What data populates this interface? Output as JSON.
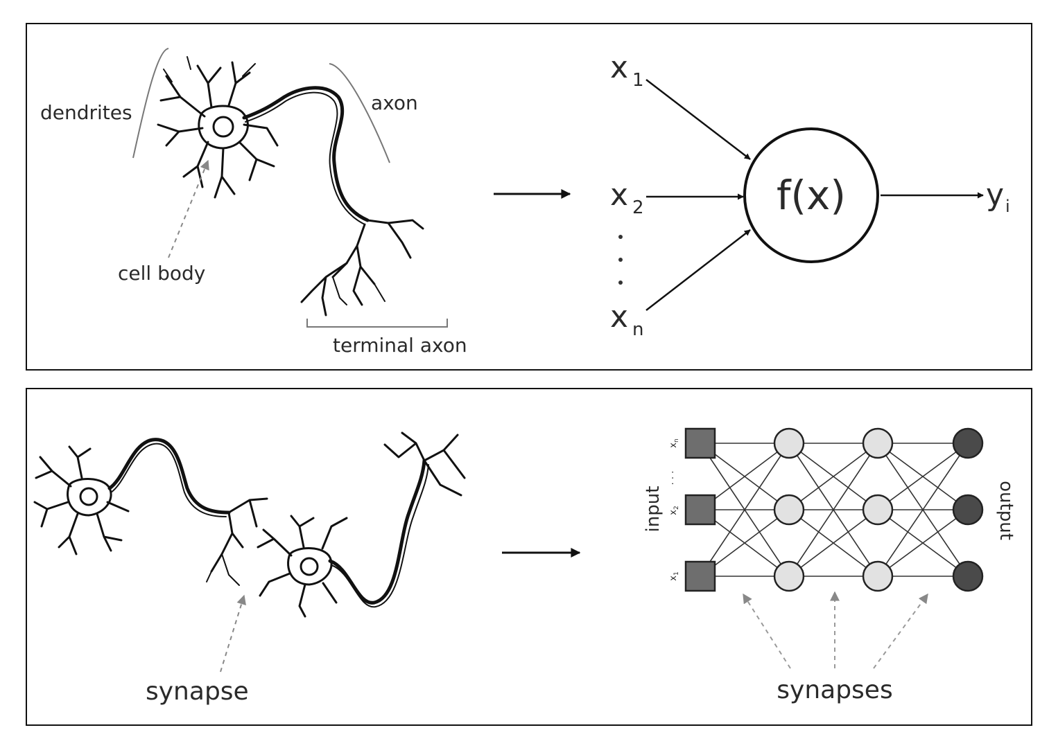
{
  "neuron_labels": {
    "dendrites": "dendrites",
    "axon": "axon",
    "cell_body": "cell body",
    "terminal_axon": "terminal axon"
  },
  "perceptron": {
    "function": "f(x)",
    "inputs": [
      {
        "base": "x",
        "sub": "1"
      },
      {
        "base": "x",
        "sub": "2"
      },
      {
        "base": "x",
        "sub": "n"
      }
    ],
    "output": {
      "base": "y",
      "sub": "i"
    }
  },
  "bottom": {
    "synapse_label": "synapse",
    "synapses_label": "synapses",
    "input_label": "input",
    "output_label": "output",
    "input_nodes": [
      {
        "base": "x",
        "sub": "n"
      },
      {
        "base": "x",
        "sub": "2"
      },
      {
        "base": "x",
        "sub": "1"
      }
    ],
    "input_ellipsis": "· · ·"
  },
  "colors": {
    "input_node": "#6e6e6e",
    "hidden_node": "#e2e2e2",
    "output_node": "#4a4a4a",
    "line": "#111111"
  }
}
